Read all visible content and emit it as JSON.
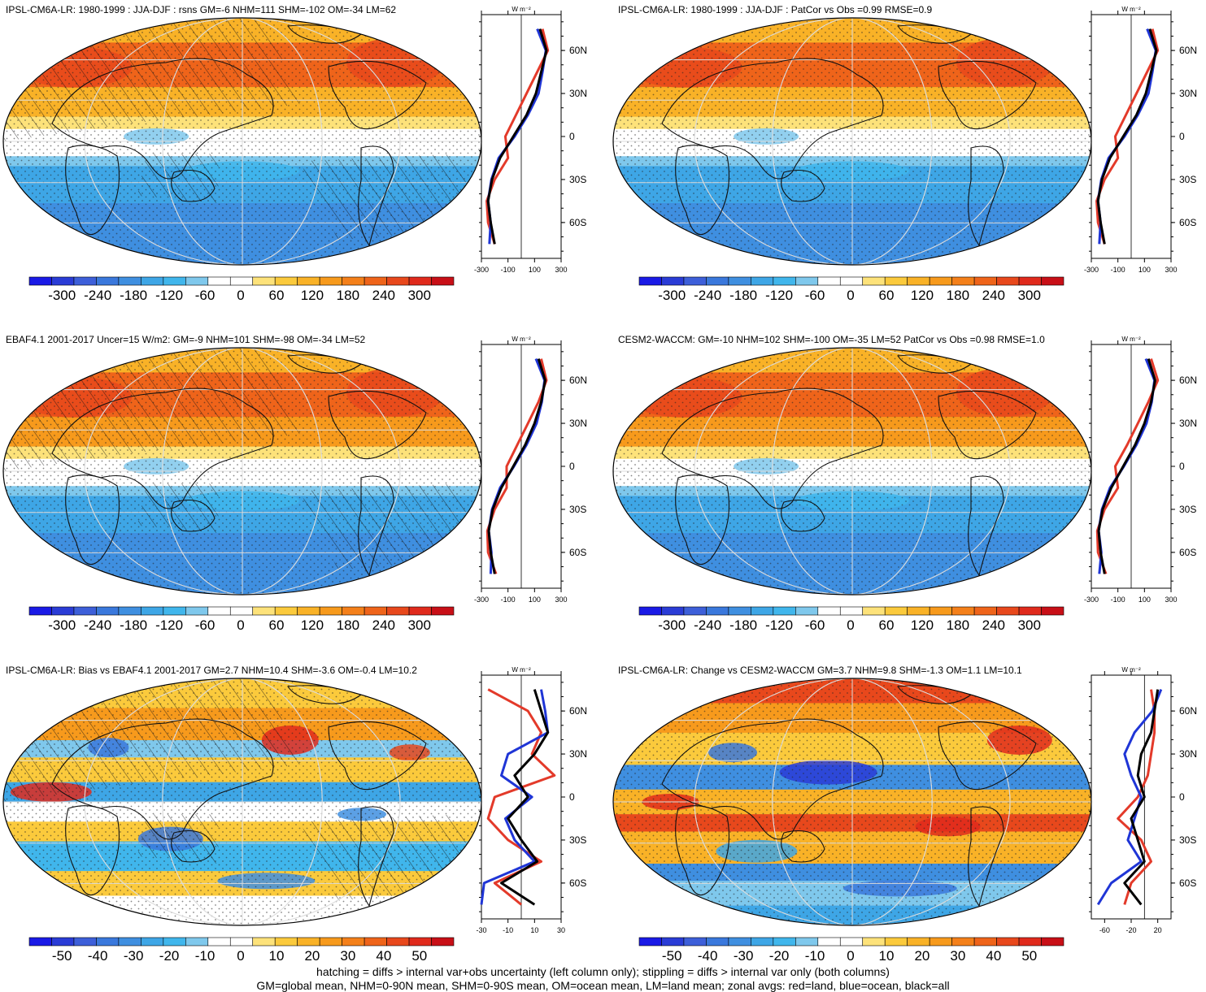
{
  "colors": {
    "scale": [
      "#1a1ae6",
      "#2a3cd6",
      "#3d5fd9",
      "#3a78dc",
      "#3f8fe0",
      "#3ea6e6",
      "#40b6ec",
      "#7fc8ec",
      "#ffffff",
      "#ffffff",
      "#fde27a",
      "#fbca3c",
      "#f9b227",
      "#f79a1c",
      "#f4801a",
      "#ef641a",
      "#e8481c",
      "#e02a1c",
      "#c80f17"
    ],
    "land_line": "#e33a2a",
    "ocean_line": "#1f35d6",
    "all_line": "#000000"
  },
  "panels": [
    {
      "title": "IPSL-CM6A-LR: 1980-1999 : JJA-DJF : rsns GM=-6 NHM=111 SHM=-102 OM=-34 LM=62",
      "pattern": "mean",
      "hatched": true,
      "cb_labels": [
        "-300",
        "-240",
        "-180",
        "-120",
        "-60",
        "0",
        "60",
        "120",
        "180",
        "240",
        "300"
      ],
      "z_ticks": [
        "-300",
        "-100",
        "100",
        "300"
      ],
      "z_unit": "W m⁻²",
      "lat_labels": [
        "60N",
        "30N",
        "0",
        "30S",
        "60S"
      ]
    },
    {
      "title": "IPSL-CM6A-LR: 1980-1999 : JJA-DJF : PatCor vs Obs =0.99 RMSE=0.9",
      "pattern": "mean",
      "hatched": false,
      "cb_labels": [
        "-300",
        "-240",
        "-180",
        "-120",
        "-60",
        "0",
        "60",
        "120",
        "180",
        "240",
        "300"
      ],
      "z_ticks": [
        "-300",
        "-100",
        "100",
        "300"
      ],
      "z_unit": "W m⁻²",
      "lat_labels": [
        "60N",
        "30N",
        "0",
        "30S",
        "60S"
      ]
    },
    {
      "title": "EBAF4.1 2001-2017 Uncer=15 W/m2: GM=-9 NHM=101 SHM=-98 OM=-34 LM=52",
      "pattern": "mean",
      "hatched": true,
      "cb_labels": [
        "-300",
        "-240",
        "-180",
        "-120",
        "-60",
        "0",
        "60",
        "120",
        "180",
        "240",
        "300"
      ],
      "z_ticks": [
        "-300",
        "-100",
        "100",
        "300"
      ],
      "z_unit": "W m⁻²",
      "lat_labels": [
        "60N",
        "30N",
        "0",
        "30S",
        "60S"
      ]
    },
    {
      "title": "CESM2-WACCM: GM=-10 NHM=102 SHM=-100 OM=-35 LM=52 PatCor vs Obs =0.98 RMSE=1.0",
      "pattern": "mean",
      "hatched": false,
      "cb_labels": [
        "-300",
        "-240",
        "-180",
        "-120",
        "-60",
        "0",
        "60",
        "120",
        "180",
        "240",
        "300"
      ],
      "z_ticks": [
        "-300",
        "-100",
        "100",
        "300"
      ],
      "z_unit": "W m⁻²",
      "lat_labels": [
        "60N",
        "30N",
        "0",
        "30S",
        "60S"
      ]
    },
    {
      "title": "IPSL-CM6A-LR: Bias vs EBAF4.1 2001-2017 GM=2.7 NHM=10.4 SHM=-3.6 OM=-0.4 LM=10.2",
      "pattern": "diff",
      "hatched": true,
      "cb_labels": [
        "-50",
        "-40",
        "-30",
        "-20",
        "-10",
        "0",
        "10",
        "20",
        "30",
        "40",
        "50"
      ],
      "z_ticks": [
        "-30",
        "-10",
        "10",
        "30"
      ],
      "z_unit": "W m⁻²",
      "lat_labels": [
        "60N",
        "30N",
        "0",
        "30S",
        "60S"
      ]
    },
    {
      "title": "IPSL-CM6A-LR: Change vs CESM2-WACCM GM=3.7 NHM=9.8 SHM=-1.3 OM=1.1 LM=10.1",
      "pattern": "diff2",
      "hatched": false,
      "cb_labels": [
        "-50",
        "-40",
        "-30",
        "-20",
        "-10",
        "0",
        "10",
        "20",
        "30",
        "40",
        "50"
      ],
      "z_ticks": [
        "-60",
        "-20",
        "20"
      ],
      "z_unit": "W m⁻²",
      "lat_labels": [
        "60N",
        "30N",
        "0",
        "30S",
        "60S"
      ]
    }
  ],
  "footer": {
    "line1": "hatching = diffs > internal var+obs uncertainty (left column only); stippling = diffs > internal var only (both columns)",
    "line2": "GM=global mean, NHM=0-90N mean, SHM=0-90S mean, OM=ocean mean, LM=land mean; zonal avgs: red=land, blue=ocean, black=all"
  },
  "chart_data": [
    {
      "type": "heatmap",
      "title": "IPSL-CM6A-LR: 1980-1999 : JJA-DJF : rsns GM=-6 NHM=111 SHM=-102 OM=-34 LM=62",
      "colorbar": [
        -300,
        -240,
        -180,
        -120,
        -60,
        0,
        60,
        120,
        180,
        240,
        300
      ],
      "zonal_mean": {
        "xlim": [
          -300,
          300
        ],
        "x_ticks": [
          -300,
          -100,
          100,
          300
        ],
        "lat_ticks": [
          "60N",
          "30N",
          "0",
          "30S",
          "60S"
        ],
        "lat": [
          75,
          60,
          45,
          30,
          15,
          0,
          -15,
          -30,
          -45,
          -60,
          -75
        ],
        "all": [
          140,
          190,
          150,
          110,
          40,
          -60,
          -160,
          -220,
          -250,
          -230,
          -200
        ],
        "land": [
          160,
          200,
          120,
          40,
          -40,
          -120,
          -100,
          -200,
          -260,
          -250,
          -200
        ],
        "ocean": [
          120,
          185,
          160,
          130,
          50,
          -50,
          -170,
          -225,
          -250,
          -230,
          -240
        ]
      }
    },
    {
      "type": "heatmap",
      "title": "IPSL-CM6A-LR: 1980-1999 : JJA-DJF : PatCor vs Obs =0.99 RMSE=0.9",
      "colorbar": [
        -300,
        -240,
        -180,
        -120,
        -60,
        0,
        60,
        120,
        180,
        240,
        300
      ],
      "zonal_mean": {
        "xlim": [
          -300,
          300
        ],
        "x_ticks": [
          -300,
          -100,
          100,
          300
        ],
        "lat_ticks": [
          "60N",
          "30N",
          "0",
          "30S",
          "60S"
        ],
        "lat": [
          75,
          60,
          45,
          30,
          15,
          0,
          -15,
          -30,
          -45,
          -60,
          -75
        ],
        "all": [
          140,
          190,
          150,
          110,
          40,
          -60,
          -160,
          -220,
          -250,
          -230,
          -200
        ],
        "land": [
          160,
          200,
          120,
          40,
          -40,
          -120,
          -100,
          -200,
          -260,
          -250,
          -200
        ],
        "ocean": [
          120,
          185,
          160,
          130,
          50,
          -50,
          -170,
          -225,
          -250,
          -230,
          -240
        ]
      }
    },
    {
      "type": "heatmap",
      "title": "EBAF4.1 2001-2017 Uncer=15 W/m2: GM=-9 NHM=101 SHM=-98 OM=-34 LM=52",
      "colorbar": [
        -300,
        -240,
        -180,
        -120,
        -60,
        0,
        60,
        120,
        180,
        240,
        300
      ],
      "zonal_mean": {
        "xlim": [
          -300,
          300
        ],
        "x_ticks": [
          -300,
          -100,
          100,
          300
        ],
        "lat_ticks": [
          "60N",
          "30N",
          "0",
          "30S",
          "60S"
        ],
        "lat": [
          75,
          60,
          45,
          30,
          15,
          0,
          -15,
          -30,
          -45,
          -60,
          -75
        ],
        "all": [
          130,
          180,
          150,
          100,
          30,
          -60,
          -150,
          -215,
          -245,
          -230,
          -200
        ],
        "land": [
          150,
          190,
          130,
          50,
          -30,
          -110,
          -110,
          -200,
          -255,
          -250,
          -190
        ],
        "ocean": [
          110,
          175,
          155,
          115,
          40,
          -55,
          -160,
          -220,
          -245,
          -225,
          -230
        ]
      }
    },
    {
      "type": "heatmap",
      "title": "CESM2-WACCM: GM=-10 NHM=102 SHM=-100 OM=-35 LM=52 PatCor vs Obs =0.98 RMSE=1.0",
      "colorbar": [
        -300,
        -240,
        -180,
        -120,
        -60,
        0,
        60,
        120,
        180,
        240,
        300
      ],
      "zonal_mean": {
        "xlim": [
          -300,
          300
        ],
        "x_ticks": [
          -300,
          -100,
          100,
          300
        ],
        "lat_ticks": [
          "60N",
          "30N",
          "0",
          "30S",
          "60S"
        ],
        "lat": [
          75,
          60,
          45,
          30,
          15,
          0,
          -15,
          -30,
          -45,
          -60,
          -75
        ],
        "all": [
          130,
          180,
          150,
          100,
          30,
          -60,
          -150,
          -215,
          -245,
          -230,
          -200
        ],
        "land": [
          150,
          200,
          130,
          50,
          -30,
          -120,
          -100,
          -200,
          -255,
          -250,
          -190
        ],
        "ocean": [
          110,
          175,
          155,
          115,
          40,
          -55,
          -160,
          -220,
          -245,
          -225,
          -240
        ]
      }
    },
    {
      "type": "heatmap",
      "title": "IPSL-CM6A-LR: Bias vs EBAF4.1 2001-2017 GM=2.7 NHM=10.4 SHM=-3.6 OM=-0.4 LM=10.2",
      "colorbar": [
        -50,
        -40,
        -30,
        -20,
        -10,
        0,
        10,
        20,
        30,
        40,
        50
      ],
      "zonal_mean": {
        "xlim": [
          -30,
          30
        ],
        "x_ticks": [
          -30,
          -10,
          10,
          30
        ],
        "lat_ticks": [
          "60N",
          "30N",
          "0",
          "30S",
          "60S"
        ],
        "lat": [
          75,
          60,
          45,
          30,
          15,
          0,
          -15,
          -30,
          -45,
          -60,
          -75
        ],
        "all": [
          10,
          15,
          20,
          10,
          -5,
          5,
          -10,
          0,
          12,
          -15,
          10
        ],
        "land": [
          -25,
          5,
          15,
          8,
          25,
          -20,
          -25,
          -10,
          15,
          -20,
          0
        ],
        "ocean": [
          15,
          18,
          20,
          -10,
          -15,
          8,
          -12,
          -5,
          10,
          -28,
          -30
        ]
      }
    },
    {
      "type": "heatmap",
      "title": "IPSL-CM6A-LR: Change vs CESM2-WACCM GM=3.7 NHM=9.8 SHM=-1.3 OM=1.1 LM=10.1",
      "colorbar": [
        -50,
        -40,
        -30,
        -20,
        -10,
        0,
        10,
        20,
        30,
        40,
        50
      ],
      "zonal_mean": {
        "xlim": [
          -80,
          40
        ],
        "x_ticks": [
          -60,
          -20,
          20
        ],
        "lat_ticks": [
          "60N",
          "30N",
          "0",
          "30S",
          "60S"
        ],
        "lat": [
          75,
          60,
          45,
          30,
          15,
          0,
          -15,
          -30,
          -45,
          -60,
          -75
        ],
        "all": [
          20,
          15,
          10,
          -5,
          -10,
          0,
          -20,
          -10,
          0,
          -30,
          -5
        ],
        "land": [
          10,
          15,
          15,
          10,
          5,
          -10,
          -40,
          -5,
          10,
          -20,
          -30
        ],
        "ocean": [
          25,
          12,
          -15,
          -30,
          -20,
          -5,
          -15,
          -25,
          -5,
          -50,
          -70
        ]
      }
    }
  ]
}
